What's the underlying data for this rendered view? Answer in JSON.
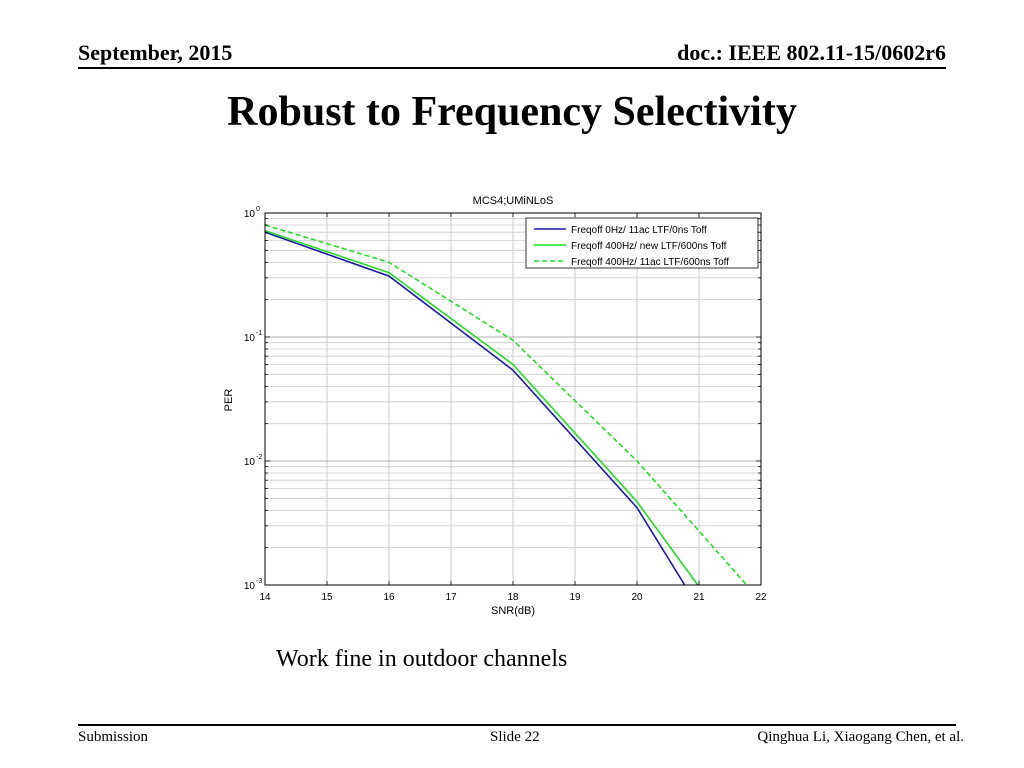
{
  "header": {
    "date": "September, 2015",
    "doc": "doc.: IEEE 802.11-15/0602r6"
  },
  "slide_title": "Robust to Frequency Selectivity",
  "caption": "Work fine in outdoor channels",
  "footer": {
    "left": "Submission",
    "center": "Slide 22",
    "right": "Qinghua Li, Xiaogang Chen, et al."
  },
  "chart_data": {
    "type": "line",
    "title": "MCS4;UMiNLoS",
    "xlabel": "SNR(dB)",
    "ylabel": "PER",
    "xlim": [
      14,
      22
    ],
    "ylim": [
      0.001,
      1
    ],
    "yscale": "log",
    "grid": true,
    "legend_position": "top-right",
    "x_ticks": [
      "14",
      "15",
      "16",
      "17",
      "18",
      "19",
      "20",
      "21",
      "22"
    ],
    "y_ticks": [
      {
        "value": 1,
        "base": "10",
        "exp": "0"
      },
      {
        "value": 0.1,
        "base": "10",
        "exp": "-1"
      },
      {
        "value": 0.01,
        "base": "10",
        "exp": "-2"
      },
      {
        "value": 0.001,
        "base": "10",
        "exp": "-3"
      }
    ],
    "series": [
      {
        "name": "Freqoff 0Hz/ 11ac LTF/0ns Toff",
        "color": "#1a1aaa",
        "dash": "solid",
        "x": [
          14,
          16,
          18,
          20,
          20.77
        ],
        "y": [
          0.7,
          0.31,
          0.054,
          0.0042,
          0.001
        ]
      },
      {
        "name": "Freqoff 400Hz/ new LTF/600ns Toff",
        "color": "#22dd22",
        "dash": "solid",
        "x": [
          14,
          16,
          18,
          20,
          20.98
        ],
        "y": [
          0.72,
          0.33,
          0.06,
          0.0047,
          0.001
        ]
      },
      {
        "name": "Freqoff 400Hz/ 11ac LTF/600ns Toff",
        "color": "#22dd22",
        "dash": "dashed",
        "x": [
          14,
          16,
          18,
          20,
          21.77
        ],
        "y": [
          0.8,
          0.4,
          0.094,
          0.01,
          0.001
        ]
      }
    ]
  }
}
